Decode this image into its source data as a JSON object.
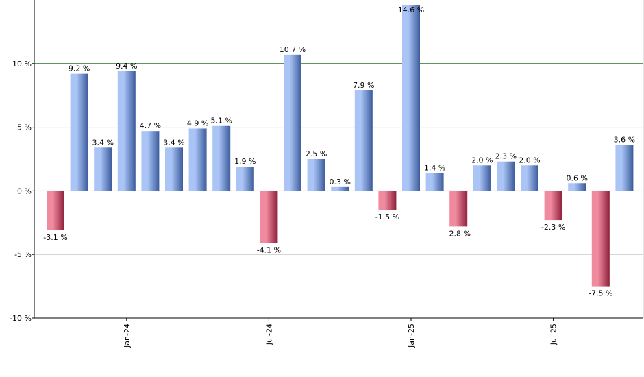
{
  "chart_data": {
    "type": "bar",
    "title": "",
    "xlabel": "",
    "ylabel": "",
    "ylim": [
      -10,
      15
    ],
    "yticks": [
      {
        "value": -10,
        "label": "-10 %"
      },
      {
        "value": -5,
        "label": "-5 %"
      },
      {
        "value": 0,
        "label": "0 %"
      },
      {
        "value": 5,
        "label": "5 %"
      },
      {
        "value": 10,
        "label": "10 %"
      }
    ],
    "xticks": [
      {
        "index": 3,
        "label": "Jan-24"
      },
      {
        "index": 9,
        "label": "Jul-24"
      },
      {
        "index": 15,
        "label": "Jan-25"
      },
      {
        "index": 21,
        "label": "Jul-25"
      }
    ],
    "values": [
      -3.1,
      9.2,
      3.4,
      9.4,
      4.7,
      3.4,
      4.9,
      5.1,
      1.9,
      -4.1,
      10.7,
      2.5,
      0.3,
      7.9,
      -1.5,
      14.6,
      1.4,
      -2.8,
      2.0,
      2.3,
      2.0,
      -2.3,
      0.6,
      -7.5,
      3.6
    ],
    "value_labels": [
      "-3.1 %",
      "9.2 %",
      "3.4 %",
      "9.4 %",
      "4.7 %",
      "3.4 %",
      "4.9 %",
      "5.1 %",
      "1.9 %",
      "-4.1 %",
      "10.7 %",
      "2.5 %",
      "0.3 %",
      "7.9 %",
      "-1.5 %",
      "14.6 %",
      "1.4 %",
      "-2.8 %",
      "2.0 %",
      "2.3 %",
      "2.0 %",
      "-2.3 %",
      "0.6 %",
      "-7.5 %",
      "3.6 %"
    ],
    "reference_line": {
      "value": 10,
      "color": "#2e7d32"
    },
    "grid": true,
    "colors": {
      "positive_light": "#a9c4f5",
      "positive_dark": "#3b5b9c",
      "negative_light": "#f08a9e",
      "negative_dark": "#8e1f3b",
      "grid": "#c8c8c8",
      "axis": "#000000"
    }
  }
}
